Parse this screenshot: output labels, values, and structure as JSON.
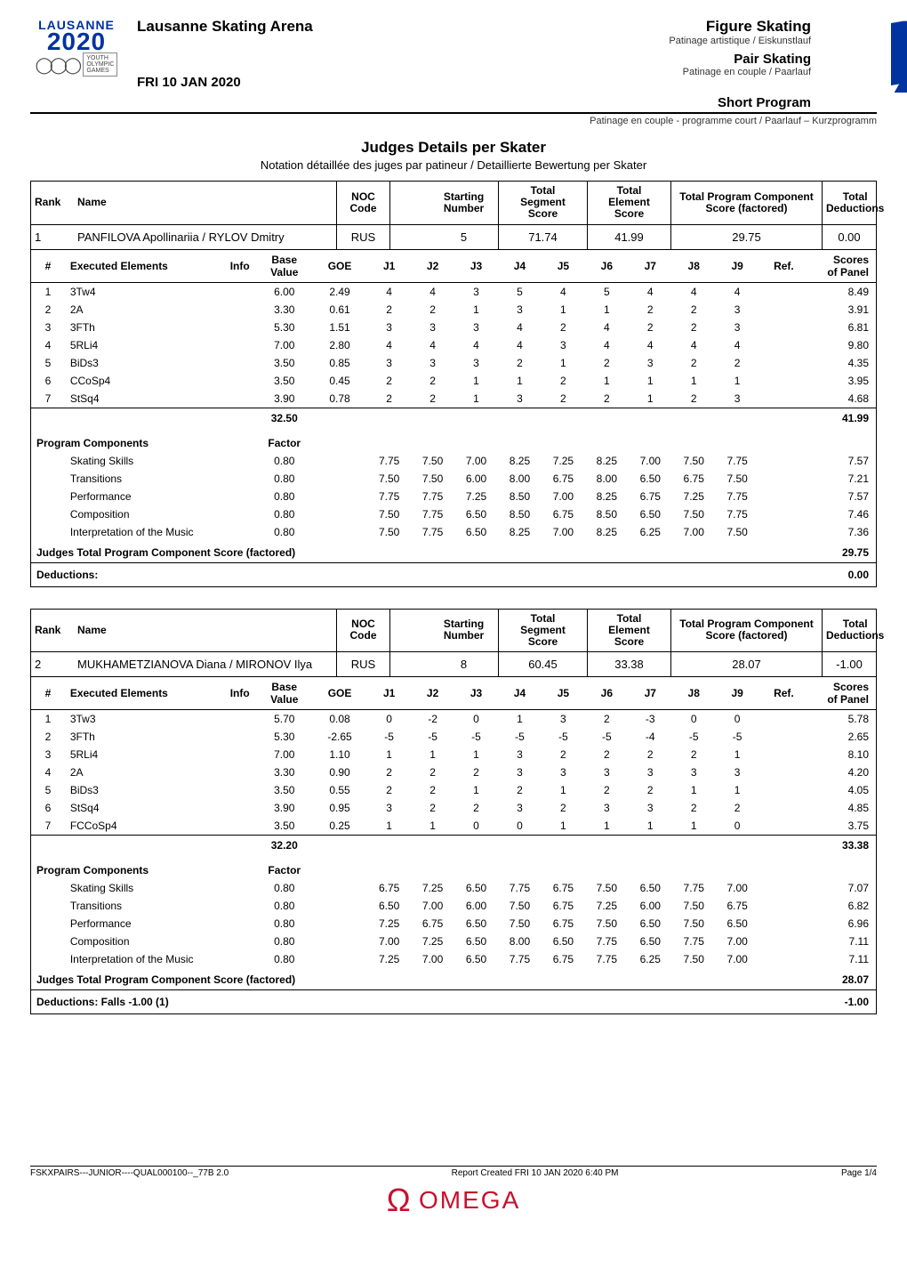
{
  "header": {
    "logo_wordmark": "LAUSANNE",
    "logo_year": "2020",
    "yog_lines": [
      "YOUTH",
      "OLYMPIC",
      "GAMES"
    ],
    "venue": "Lausanne Skating Arena",
    "date": "FRI 10 JAN 2020",
    "discipline": "Figure Skating",
    "discipline_sub": "Patinage artistique / Eiskunstlauf",
    "event": "Pair Skating",
    "event_sub": "Patinage en couple / Paarlauf",
    "phase": "Short Program",
    "phase_sub": "Patinage en couple - programme court / Paarlauf – Kurzprogramm"
  },
  "titles": {
    "main": "Judges Details per Skater",
    "sub": "Notation détaillée des juges par patineur / Detaillierte Bewertung per Skater"
  },
  "columns": {
    "rank": "Rank",
    "name": "Name",
    "noc": "NOC\nCode",
    "start": "Starting\nNumber",
    "seg": "Total\nSegment\nScore",
    "elem": "Total\nElement\nScore",
    "comp": "Total Program Component\nScore (factored)",
    "ded": "Total\nDeductions"
  },
  "el_columns": {
    "num": "#",
    "exec": "Executed Elements",
    "info": "Info",
    "bv": "Base\nValue",
    "goe": "GOE",
    "j": [
      "J1",
      "J2",
      "J3",
      "J4",
      "J5",
      "J6",
      "J7",
      "J8",
      "J9"
    ],
    "ref": "Ref.",
    "sop": "Scores\nof Panel"
  },
  "comp_labels": {
    "pc": "Program Components",
    "factor": "Factor",
    "jt": "Judges Total Program Component Score (factored)",
    "ded": "Deductions:",
    "falls": "Falls"
  },
  "skaters": [
    {
      "rank": "1",
      "name": "PANFILOVA Apollinariia / RYLOV Dmitry",
      "noc": "RUS",
      "start": "5",
      "seg": "71.74",
      "elem": "41.99",
      "comp": "29.75",
      "ded": "0.00",
      "elements": [
        {
          "n": "1",
          "el": "3Tw4",
          "bv": "6.00",
          "goe": "2.49",
          "j": [
            "4",
            "4",
            "3",
            "5",
            "4",
            "5",
            "4",
            "4",
            "4"
          ],
          "sop": "8.49"
        },
        {
          "n": "2",
          "el": "2A",
          "bv": "3.30",
          "goe": "0.61",
          "j": [
            "2",
            "2",
            "1",
            "3",
            "1",
            "1",
            "2",
            "2",
            "3"
          ],
          "sop": "3.91"
        },
        {
          "n": "3",
          "el": "3FTh",
          "bv": "5.30",
          "goe": "1.51",
          "j": [
            "3",
            "3",
            "3",
            "4",
            "2",
            "4",
            "2",
            "2",
            "3"
          ],
          "sop": "6.81"
        },
        {
          "n": "4",
          "el": "5RLi4",
          "bv": "7.00",
          "goe": "2.80",
          "j": [
            "4",
            "4",
            "4",
            "4",
            "3",
            "4",
            "4",
            "4",
            "4"
          ],
          "sop": "9.80"
        },
        {
          "n": "5",
          "el": "BiDs3",
          "bv": "3.50",
          "goe": "0.85",
          "j": [
            "3",
            "3",
            "3",
            "2",
            "1",
            "2",
            "3",
            "2",
            "2"
          ],
          "sop": "4.35"
        },
        {
          "n": "6",
          "el": "CCoSp4",
          "bv": "3.50",
          "goe": "0.45",
          "j": [
            "2",
            "2",
            "1",
            "1",
            "2",
            "1",
            "1",
            "1",
            "1"
          ],
          "sop": "3.95"
        },
        {
          "n": "7",
          "el": "StSq4",
          "bv": "3.90",
          "goe": "0.78",
          "j": [
            "2",
            "2",
            "1",
            "3",
            "2",
            "2",
            "1",
            "2",
            "3"
          ],
          "sop": "4.68"
        }
      ],
      "bv_total": "32.50",
      "el_total": "41.99",
      "components": [
        {
          "name": "Skating Skills",
          "factor": "0.80",
          "j": [
            "7.75",
            "7.50",
            "7.00",
            "8.25",
            "7.25",
            "8.25",
            "7.00",
            "7.50",
            "7.75"
          ],
          "score": "7.57"
        },
        {
          "name": "Transitions",
          "factor": "0.80",
          "j": [
            "7.50",
            "7.50",
            "6.00",
            "8.00",
            "6.75",
            "8.00",
            "6.50",
            "6.75",
            "7.50"
          ],
          "score": "7.21"
        },
        {
          "name": "Performance",
          "factor": "0.80",
          "j": [
            "7.75",
            "7.75",
            "7.25",
            "8.50",
            "7.00",
            "8.25",
            "6.75",
            "7.25",
            "7.75"
          ],
          "score": "7.57"
        },
        {
          "name": "Composition",
          "factor": "0.80",
          "j": [
            "7.50",
            "7.75",
            "6.50",
            "8.50",
            "6.75",
            "8.50",
            "6.50",
            "7.50",
            "7.75"
          ],
          "score": "7.46"
        },
        {
          "name": "Interpretation of the Music",
          "factor": "0.80",
          "j": [
            "7.50",
            "7.75",
            "6.50",
            "8.25",
            "7.00",
            "8.25",
            "6.25",
            "7.00",
            "7.50"
          ],
          "score": "7.36"
        }
      ],
      "comp_total": "29.75",
      "ded_detail": "",
      "ded_value": "0.00"
    },
    {
      "rank": "2",
      "name": "MUKHAMETZIANOVA Diana / MIRONOV Ilya",
      "noc": "RUS",
      "start": "8",
      "seg": "60.45",
      "elem": "33.38",
      "comp": "28.07",
      "ded": "-1.00",
      "elements": [
        {
          "n": "1",
          "el": "3Tw3",
          "bv": "5.70",
          "goe": "0.08",
          "j": [
            "0",
            "-2",
            "0",
            "1",
            "3",
            "2",
            "-3",
            "0",
            "0"
          ],
          "sop": "5.78"
        },
        {
          "n": "2",
          "el": "3FTh",
          "bv": "5.30",
          "goe": "-2.65",
          "j": [
            "-5",
            "-5",
            "-5",
            "-5",
            "-5",
            "-5",
            "-4",
            "-5",
            "-5"
          ],
          "sop": "2.65"
        },
        {
          "n": "3",
          "el": "5RLi4",
          "bv": "7.00",
          "goe": "1.10",
          "j": [
            "1",
            "1",
            "1",
            "3",
            "2",
            "2",
            "2",
            "2",
            "1"
          ],
          "sop": "8.10"
        },
        {
          "n": "4",
          "el": "2A",
          "bv": "3.30",
          "goe": "0.90",
          "j": [
            "2",
            "2",
            "2",
            "3",
            "3",
            "3",
            "3",
            "3",
            "3"
          ],
          "sop": "4.20"
        },
        {
          "n": "5",
          "el": "BiDs3",
          "bv": "3.50",
          "goe": "0.55",
          "j": [
            "2",
            "2",
            "1",
            "2",
            "1",
            "2",
            "2",
            "1",
            "1"
          ],
          "sop": "4.05"
        },
        {
          "n": "6",
          "el": "StSq4",
          "bv": "3.90",
          "goe": "0.95",
          "j": [
            "3",
            "2",
            "2",
            "3",
            "2",
            "3",
            "3",
            "2",
            "2"
          ],
          "sop": "4.85"
        },
        {
          "n": "7",
          "el": "FCCoSp4",
          "bv": "3.50",
          "goe": "0.25",
          "j": [
            "1",
            "1",
            "0",
            "0",
            "1",
            "1",
            "1",
            "1",
            "0"
          ],
          "sop": "3.75"
        }
      ],
      "bv_total": "32.20",
      "el_total": "33.38",
      "components": [
        {
          "name": "Skating Skills",
          "factor": "0.80",
          "j": [
            "6.75",
            "7.25",
            "6.50",
            "7.75",
            "6.75",
            "7.50",
            "6.50",
            "7.75",
            "7.00"
          ],
          "score": "7.07"
        },
        {
          "name": "Transitions",
          "factor": "0.80",
          "j": [
            "6.50",
            "7.00",
            "6.00",
            "7.50",
            "6.75",
            "7.25",
            "6.00",
            "7.50",
            "6.75"
          ],
          "score": "6.82"
        },
        {
          "name": "Performance",
          "factor": "0.80",
          "j": [
            "7.25",
            "6.75",
            "6.50",
            "7.50",
            "6.75",
            "7.50",
            "6.50",
            "7.50",
            "6.50"
          ],
          "score": "6.96"
        },
        {
          "name": "Composition",
          "factor": "0.80",
          "j": [
            "7.00",
            "7.25",
            "6.50",
            "8.00",
            "6.50",
            "7.75",
            "6.50",
            "7.75",
            "7.00"
          ],
          "score": "7.11"
        },
        {
          "name": "Interpretation of the Music",
          "factor": "0.80",
          "j": [
            "7.25",
            "7.00",
            "6.50",
            "7.75",
            "6.75",
            "7.75",
            "6.25",
            "7.50",
            "7.00"
          ],
          "score": "7.11"
        }
      ],
      "comp_total": "28.07",
      "ded_detail": "Falls   -1.00   (1)",
      "ded_value": "-1.00"
    }
  ],
  "footer": {
    "left": "FSKXPAIRS---JUNIOR----QUAL000100--_77B 2.0",
    "center": "Report Created FRI 10 JAN 2020 6:40 PM",
    "right": "Page 1/4",
    "omega": "OMEGA"
  },
  "style": {
    "accent": "#0033a0",
    "omega_red": "#c8102e"
  }
}
